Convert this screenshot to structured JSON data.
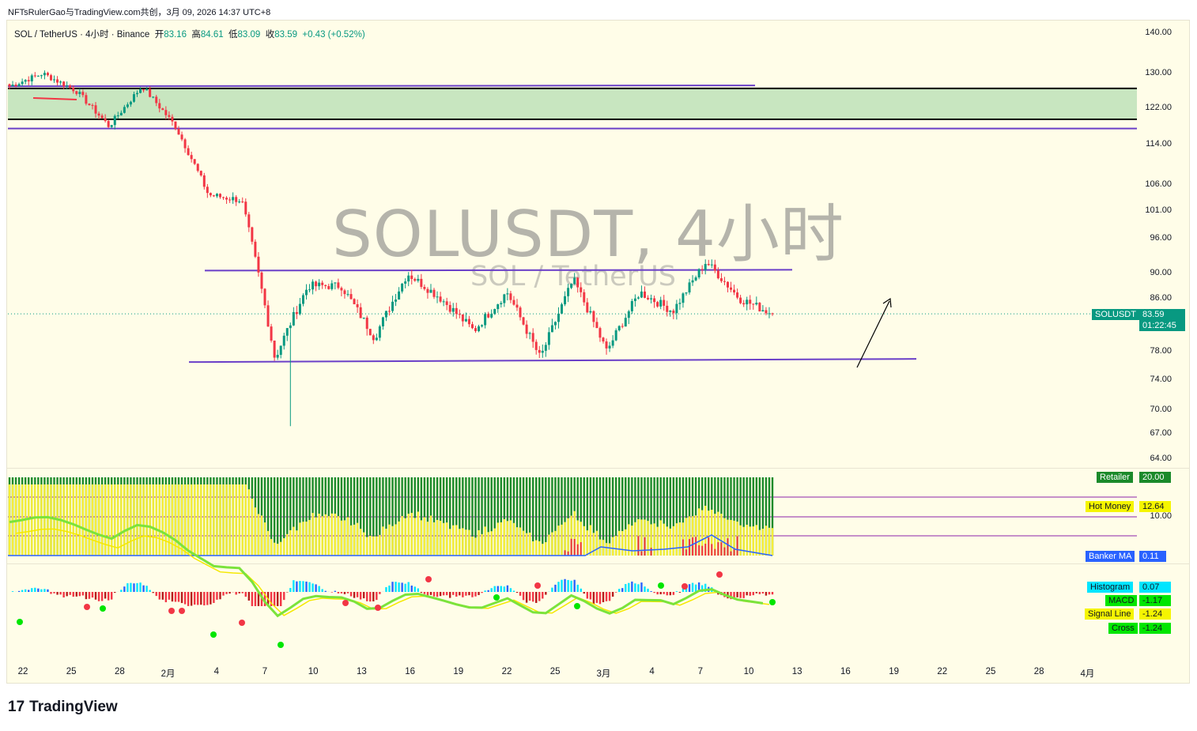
{
  "credit": "NFTsRulerGao与TradingView.com共创，3月 09, 2026 14:37 UTC+8",
  "header": {
    "symbol_line": "SOL / TetherUS · 4小时 · Binance",
    "open_label": "开",
    "open": "83.16",
    "high_label": "高",
    "high": "84.61",
    "low_label": "低",
    "low": "83.09",
    "close_label": "收",
    "close": "83.59",
    "change": "+0.43 (+0.52%)"
  },
  "watermark": {
    "title": "SOLUSDT, 4小时",
    "subtitle": "SOL / TetherUS"
  },
  "price_axis": {
    "ticks": [
      "140.00",
      "130.00",
      "122.00",
      "114.00",
      "106.00",
      "101.00",
      "96.00",
      "90.00",
      "86.00",
      "78.00",
      "74.00",
      "70.00",
      "67.00",
      "64.00"
    ],
    "last_price_label": "SOLUSDT",
    "last_price": "83.59",
    "countdown": "01:22:45"
  },
  "indicator1": {
    "retailer_label": "Retailer",
    "retailer_value": "20.00",
    "hot_money_label": "Hot Money",
    "hot_money_value": "12.64",
    "level_value": "10.00",
    "banker_label": "Banker MA",
    "banker_value": "0.11"
  },
  "macd": {
    "histogram_label": "Histogram",
    "histogram_value": "0.07",
    "macd_label": "MACD",
    "macd_value": "-1.17",
    "signal_label": "Signal Line",
    "signal_value": "-1.24",
    "cross_label": "Cross",
    "cross_value": "-1.24"
  },
  "time_axis": [
    "22",
    "25",
    "28",
    "2月",
    "4",
    "7",
    "10",
    "13",
    "16",
    "19",
    "22",
    "25",
    "3月",
    "4",
    "7",
    "10",
    "13",
    "16",
    "19",
    "22",
    "25",
    "28",
    "4月"
  ],
  "colors": {
    "up": "#089981",
    "down": "#f23645",
    "zone": "#c8e6c0",
    "channel": "#6a3fc8",
    "retailer": "#1b8a2a",
    "hotmoney": "#f5ee3a",
    "banker": "#f23645",
    "tag_teal": "#089981",
    "tag_yellow": "#f5f500",
    "tag_blue": "#2962ff",
    "tag_green": "#00e600"
  },
  "chart_data": {
    "type": "candlestick",
    "title": "SOLUSDT, 4小时",
    "subtitle": "SOL / TetherUS",
    "exchange": "Binance",
    "timeframe": "4小时",
    "y_scale": "log",
    "ylim": [
      62,
      145
    ],
    "last": {
      "open": 83.16,
      "high": 84.61,
      "low": 83.09,
      "close": 83.59,
      "change": 0.43,
      "change_pct": 0.52
    },
    "key_path": [
      {
        "date": "01-21",
        "close": 127
      },
      {
        "date": "01-23",
        "close": 130
      },
      {
        "date": "01-26",
        "close": 126
      },
      {
        "date": "01-26b",
        "close": 118
      },
      {
        "date": "01-29",
        "close": 127
      },
      {
        "date": "01-31",
        "close": 118
      },
      {
        "date": "02-02",
        "close": 104
      },
      {
        "date": "02-04",
        "close": 103
      },
      {
        "date": "02-06",
        "close": 77
      },
      {
        "date": "02-07",
        "close": 88
      },
      {
        "date": "02-09",
        "close": 88
      },
      {
        "date": "02-12",
        "close": 80
      },
      {
        "date": "02-15",
        "close": 90
      },
      {
        "date": "02-17",
        "close": 86
      },
      {
        "date": "02-19",
        "close": 81
      },
      {
        "date": "02-22",
        "close": 87
      },
      {
        "date": "02-24",
        "close": 77
      },
      {
        "date": "02-26",
        "close": 89
      },
      {
        "date": "02-28",
        "close": 78
      },
      {
        "date": "03-02",
        "close": 87
      },
      {
        "date": "03-03",
        "close": 84
      },
      {
        "date": "03-04",
        "close": 92
      },
      {
        "date": "03-06",
        "close": 86
      },
      {
        "date": "03-09",
        "close": 83.59
      }
    ],
    "drawings": {
      "resistance_zone": [
        119.5,
        126.5
      ],
      "upper_line": 127,
      "lower_zone_line": 117.5,
      "range_top": 90.5,
      "range_bottom": 76.5
    }
  }
}
